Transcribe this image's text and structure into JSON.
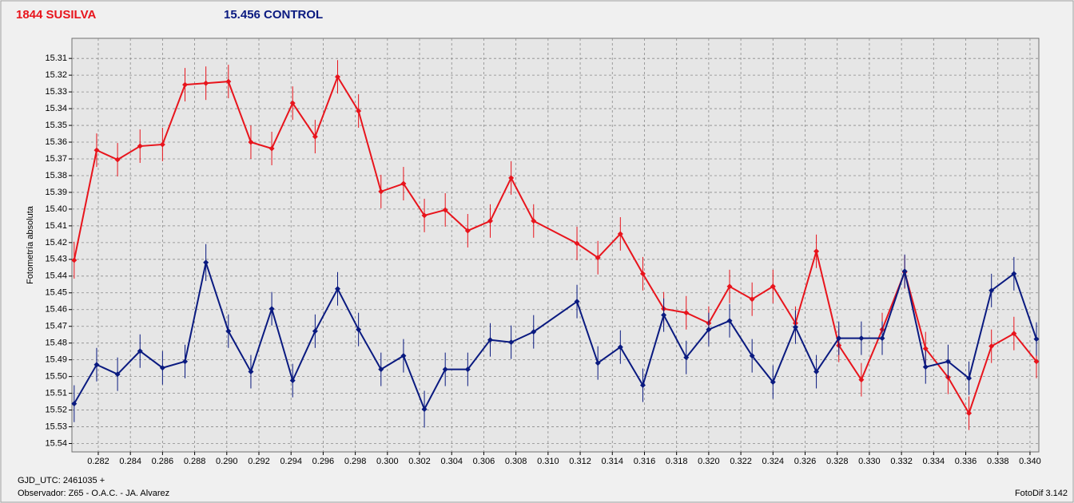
{
  "chart_data": {
    "type": "line",
    "y_label": "Fotometría absoluta",
    "footer_left_1": "GJD_UTC: 2461035 +",
    "footer_left_2": "Observador: Z65 - O.A.C. - JA. Alvarez",
    "footer_right": "FotoDif 3.142",
    "x": [
      0.2805,
      0.2819,
      0.2832,
      0.2846,
      0.286,
      0.2874,
      0.2887,
      0.2901,
      0.2915,
      0.2928,
      0.2941,
      0.2955,
      0.2969,
      0.2982,
      0.2996,
      0.301,
      0.3023,
      0.3036,
      0.305,
      0.3064,
      0.3077,
      0.3091,
      0.3118,
      0.3131,
      0.3145,
      0.3159,
      0.3172,
      0.3186,
      0.32,
      0.3213,
      0.3227,
      0.324,
      0.3254,
      0.3267,
      0.3281,
      0.3295,
      0.3308,
      0.3322,
      0.3335,
      0.3349,
      0.3362,
      0.3376,
      0.339,
      0.3404
    ],
    "series": [
      {
        "name": "1844 SUSILVA",
        "color": "#e8141c",
        "values": [
          15.4305,
          15.3648,
          15.3705,
          15.3624,
          15.3614,
          15.3257,
          15.3248,
          15.3238,
          15.36,
          15.3638,
          15.3367,
          15.3567,
          15.321,
          15.3414,
          15.3895,
          15.3848,
          15.4038,
          15.4005,
          15.4129,
          15.4071,
          15.3814,
          15.4071,
          15.4205,
          15.429,
          15.4148,
          15.4386,
          15.4595,
          15.4619,
          15.4681,
          15.4462,
          15.4538,
          15.4462,
          15.4681,
          15.4252,
          15.4814,
          15.5019,
          15.4719,
          15.4376,
          15.4833,
          15.5005,
          15.5219,
          15.4819,
          15.4743,
          15.491
        ],
        "errors": [
          0.011,
          0.01,
          0.01,
          0.01,
          0.01,
          0.01,
          0.01,
          0.01,
          0.01,
          0.01,
          0.01,
          0.01,
          0.01,
          0.01,
          0.01,
          0.01,
          0.01,
          0.01,
          0.01,
          0.01,
          0.01,
          0.01,
          0.01,
          0.01,
          0.01,
          0.01,
          0.01,
          0.01,
          0.01,
          0.01,
          0.01,
          0.01,
          0.01,
          0.01,
          0.01,
          0.01,
          0.01,
          0.01,
          0.01,
          0.01,
          0.01,
          0.01,
          0.01,
          0.01
        ]
      },
      {
        "name": "15.456 CONTROL",
        "color": "#0a1a80",
        "values": [
          15.5162,
          15.4929,
          15.4986,
          15.4848,
          15.4948,
          15.491,
          15.4319,
          15.4729,
          15.4971,
          15.4595,
          15.5024,
          15.4729,
          15.4476,
          15.4719,
          15.4957,
          15.4876,
          15.5195,
          15.4957,
          15.4957,
          15.4781,
          15.4795,
          15.4733,
          15.4552,
          15.4919,
          15.4824,
          15.5052,
          15.4633,
          15.4886,
          15.4719,
          15.4667,
          15.4876,
          15.5033,
          15.4705,
          15.4971,
          15.4771,
          15.4771,
          15.4771,
          15.4371,
          15.4943,
          15.491,
          15.501,
          15.4486,
          15.4386,
          15.4776
        ],
        "errors": [
          0.011,
          0.01,
          0.01,
          0.01,
          0.01,
          0.01,
          0.011,
          0.01,
          0.01,
          0.01,
          0.01,
          0.01,
          0.01,
          0.01,
          0.01,
          0.01,
          0.011,
          0.01,
          0.01,
          0.01,
          0.01,
          0.01,
          0.01,
          0.01,
          0.01,
          0.01,
          0.01,
          0.01,
          0.01,
          0.01,
          0.01,
          0.01,
          0.01,
          0.01,
          0.01,
          0.01,
          0.01,
          0.01,
          0.01,
          0.01,
          0.01,
          0.01,
          0.01,
          0.01
        ]
      }
    ],
    "xlim": [
      0.28036,
      0.34055
    ],
    "ylim": [
      15.298,
      15.545
    ],
    "y_inverted": true,
    "grid": true,
    "xticks": [
      0.282,
      0.284,
      0.286,
      0.288,
      {
        "value": 0.29,
        "label": "0.290"
      },
      0.292,
      0.294,
      0.296,
      0.298,
      {
        "value": 0.3,
        "label": "0.300"
      },
      0.302,
      0.304,
      0.306,
      0.308,
      {
        "value": 0.31,
        "label": "0.310"
      },
      0.312,
      0.314,
      0.316,
      0.318,
      {
        "value": 0.32,
        "label": "0.320"
      },
      0.322,
      0.324,
      0.326,
      0.328,
      {
        "value": 0.33,
        "label": "0.330"
      },
      0.332,
      0.334,
      0.336,
      0.338,
      {
        "value": 0.34,
        "label": "0.340"
      }
    ],
    "yticks": [
      15.31,
      15.32,
      15.33,
      15.34,
      15.35,
      15.36,
      15.37,
      15.38,
      15.39,
      {
        "value": 15.4,
        "label": "15.40"
      },
      15.41,
      15.42,
      15.43,
      15.44,
      15.45,
      15.46,
      15.47,
      15.48,
      15.49,
      {
        "value": 15.5,
        "label": "15.50"
      },
      15.51,
      15.52,
      15.53,
      15.54
    ]
  }
}
